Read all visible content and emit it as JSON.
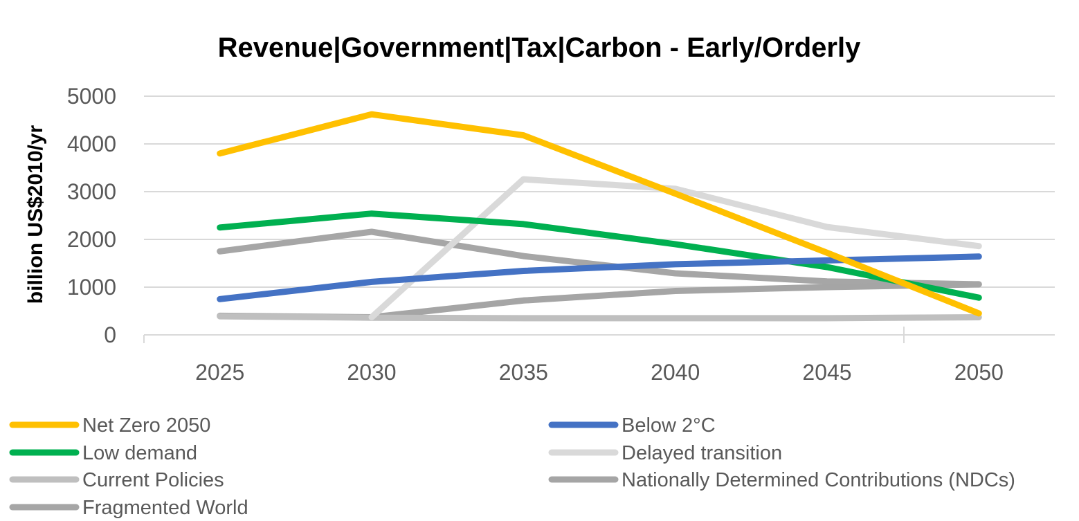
{
  "chart_data": {
    "type": "line",
    "title": "Revenue|Government|Tax|Carbon  - Early/Orderly",
    "xlabel": "",
    "ylabel": "billion US$2010/yr",
    "categories": [
      "2025",
      "2030",
      "2035",
      "2040",
      "2045",
      "2050"
    ],
    "yticks": [
      "0",
      "1000",
      "2000",
      "3000",
      "4000",
      "5000"
    ],
    "ylim": [
      0,
      5000
    ],
    "grid": true,
    "legend_position": "bottom",
    "series": [
      {
        "name": "Net Zero 2050",
        "color": "#FFC000",
        "values": [
          3800,
          4620,
          4180,
          2960,
          1720,
          450
        ]
      },
      {
        "name": "Below 2°C",
        "color": "#4472C4",
        "values": [
          750,
          1110,
          1340,
          1480,
          1560,
          1640
        ]
      },
      {
        "name": "Low demand",
        "color": "#00B050",
        "values": [
          2250,
          2540,
          2320,
          1900,
          1420,
          780
        ]
      },
      {
        "name": "Delayed transition",
        "color": "#D9D9D9",
        "values": [
          null,
          370,
          3260,
          3060,
          2260,
          1860
        ]
      },
      {
        "name": "Current Policies",
        "color": "#BFBFBF",
        "values": [
          390,
          360,
          350,
          350,
          350,
          370
        ]
      },
      {
        "name": "Nationally Determined Contributions (NDCs)",
        "color": "#A5A5A5",
        "values": [
          400,
          370,
          720,
          920,
          1000,
          1060
        ]
      },
      {
        "name": "Fragmented World",
        "color": "#A6A6A6",
        "values": [
          1750,
          2160,
          1650,
          1290,
          1120,
          1060
        ]
      }
    ]
  }
}
